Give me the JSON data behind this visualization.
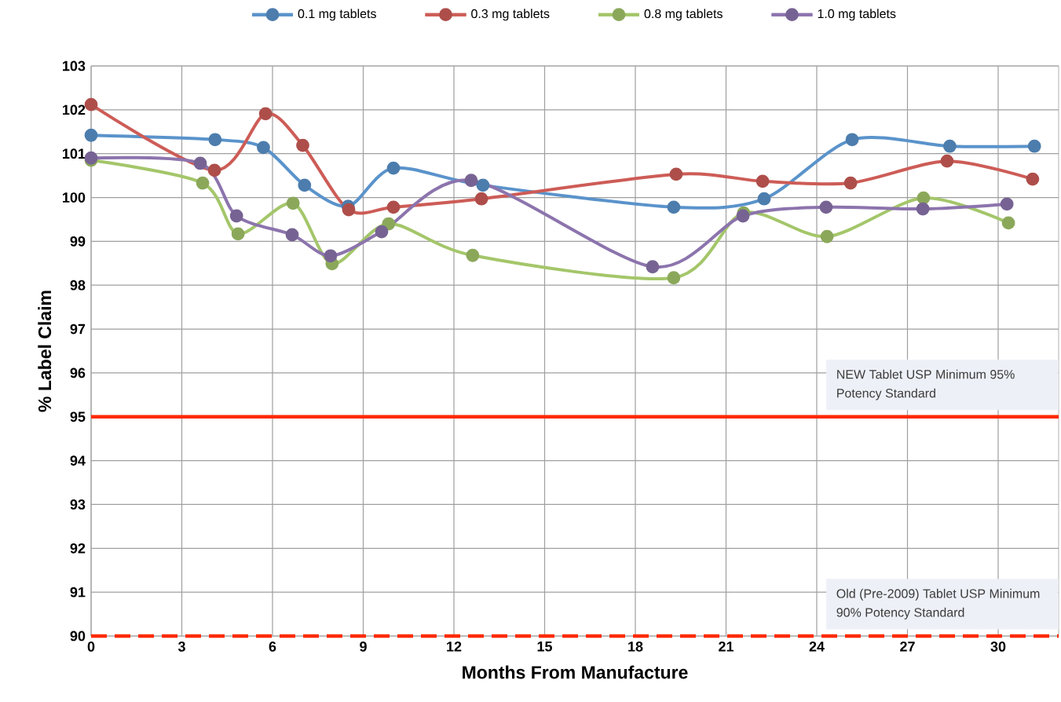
{
  "chart_data": {
    "type": "line",
    "xlabel": "Months From Manufacture",
    "ylabel": "% Label Claim",
    "xlim": [
      0,
      32
    ],
    "xticks": [
      0,
      3,
      6,
      9,
      12,
      15,
      18,
      21,
      24,
      27,
      30
    ],
    "ylim": [
      90,
      103
    ],
    "yticks": [
      90,
      91,
      92,
      93,
      94,
      95,
      96,
      97,
      98,
      99,
      100,
      101,
      102,
      103
    ],
    "grid": true,
    "legend": "top",
    "marker": "circle",
    "line_style": "solid",
    "series": [
      {
        "name": "0.1 mg tablets",
        "color": "#5a93cb",
        "x": [
          0,
          4.1,
          5.7,
          7.06,
          8.5,
          10.0,
          12.96,
          19.27,
          22.26,
          25.17,
          28.4,
          31.2
        ],
        "values": [
          101.42,
          101.32,
          101.14,
          100.28,
          99.8,
          100.67,
          100.28,
          99.78,
          99.97,
          101.32,
          101.17,
          101.17
        ]
      },
      {
        "name": "0.3 mg tablets",
        "color": "#cd5c57",
        "x": [
          0,
          4.08,
          5.77,
          7.0,
          8.52,
          10.0,
          12.91,
          19.35,
          22.21,
          25.12,
          28.31,
          31.14
        ],
        "values": [
          102.12,
          100.62,
          101.91,
          101.19,
          99.72,
          99.78,
          99.97,
          100.53,
          100.37,
          100.33,
          100.83,
          100.42
        ]
      },
      {
        "name": "0.8 mg tablets",
        "color": "#a4c66a",
        "x": [
          0,
          3.69,
          4.86,
          6.68,
          7.97,
          9.84,
          12.62,
          19.27,
          21.58,
          24.34,
          27.53,
          30.34
        ],
        "values": [
          100.85,
          100.33,
          99.17,
          99.87,
          98.49,
          99.4,
          98.68,
          98.17,
          99.65,
          99.11,
          99.99,
          99.42
        ]
      },
      {
        "name": "1.0 mg tablets",
        "color": "#8c74ad",
        "x": [
          0,
          3.61,
          4.81,
          6.65,
          7.92,
          9.61,
          12.57,
          18.57,
          21.56,
          24.31,
          27.51,
          30.29
        ],
        "values": [
          100.9,
          100.78,
          99.58,
          99.15,
          98.67,
          99.22,
          100.39,
          98.42,
          99.58,
          99.78,
          99.74,
          99.85
        ]
      }
    ],
    "ref_lines": [
      {
        "axis": "y",
        "value": 95,
        "label": "NEW Tablet USP Minimum 95% Potency Standard",
        "color": "#ff2a00",
        "line_style": "solid"
      },
      {
        "axis": "y",
        "value": 90,
        "label": "Old (Pre-2009) Tablet USP Minimum 90% Potency Standard",
        "color": "#ff2a00",
        "line_style": "dashed"
      }
    ]
  }
}
